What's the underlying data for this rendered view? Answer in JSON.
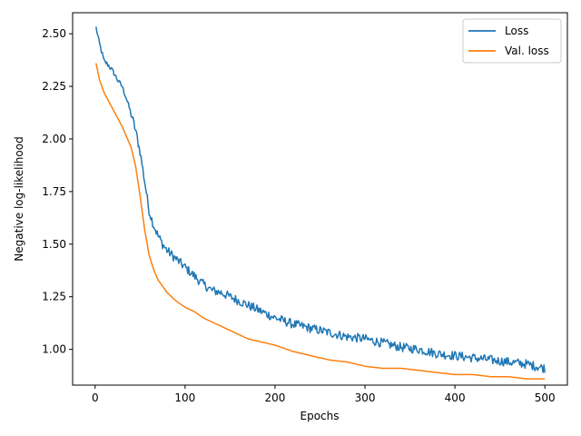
{
  "chart_data": {
    "type": "line",
    "xlabel": "Epochs",
    "ylabel": "Negative log-likelihood",
    "xlim": [
      -25,
      525
    ],
    "ylim": [
      0.83,
      2.6
    ],
    "xticks": [
      0,
      100,
      200,
      300,
      400,
      500
    ],
    "yticks": [
      1.0,
      1.25,
      1.5,
      1.75,
      2.0,
      2.25,
      2.5
    ],
    "ytick_labels": [
      "1.00",
      "1.25",
      "1.50",
      "1.75",
      "2.00",
      "2.25",
      "2.50"
    ],
    "grid": false,
    "legend_position": "top-right",
    "series": [
      {
        "name": "Loss",
        "color": "#1f77b4",
        "noisy": true,
        "x": [
          1,
          5,
          10,
          15,
          20,
          25,
          30,
          35,
          40,
          45,
          50,
          55,
          60,
          65,
          70,
          75,
          80,
          90,
          100,
          110,
          120,
          130,
          140,
          150,
          160,
          170,
          180,
          190,
          200,
          220,
          240,
          260,
          280,
          300,
          320,
          340,
          360,
          380,
          400,
          420,
          440,
          460,
          480,
          500
        ],
        "y": [
          2.53,
          2.45,
          2.37,
          2.35,
          2.32,
          2.28,
          2.25,
          2.19,
          2.12,
          2.04,
          1.94,
          1.8,
          1.66,
          1.59,
          1.54,
          1.5,
          1.47,
          1.43,
          1.39,
          1.35,
          1.31,
          1.28,
          1.27,
          1.25,
          1.23,
          1.21,
          1.19,
          1.17,
          1.15,
          1.12,
          1.1,
          1.08,
          1.06,
          1.05,
          1.03,
          1.01,
          1.0,
          0.98,
          0.97,
          0.96,
          0.95,
          0.94,
          0.93,
          0.91
        ]
      },
      {
        "name": "Val. loss",
        "color": "#ff7f0e",
        "noisy": false,
        "x": [
          1,
          5,
          10,
          15,
          20,
          25,
          30,
          35,
          40,
          45,
          50,
          55,
          60,
          65,
          70,
          75,
          80,
          90,
          100,
          110,
          120,
          130,
          140,
          150,
          160,
          170,
          180,
          190,
          200,
          220,
          240,
          260,
          280,
          300,
          320,
          340,
          360,
          380,
          400,
          420,
          440,
          460,
          480,
          500
        ],
        "y": [
          2.36,
          2.28,
          2.22,
          2.18,
          2.14,
          2.1,
          2.06,
          2.01,
          1.96,
          1.87,
          1.73,
          1.57,
          1.45,
          1.38,
          1.33,
          1.3,
          1.27,
          1.23,
          1.2,
          1.18,
          1.15,
          1.13,
          1.11,
          1.09,
          1.07,
          1.05,
          1.04,
          1.03,
          1.02,
          0.99,
          0.97,
          0.95,
          0.94,
          0.92,
          0.91,
          0.91,
          0.9,
          0.89,
          0.88,
          0.88,
          0.87,
          0.87,
          0.86,
          0.86
        ]
      }
    ]
  }
}
